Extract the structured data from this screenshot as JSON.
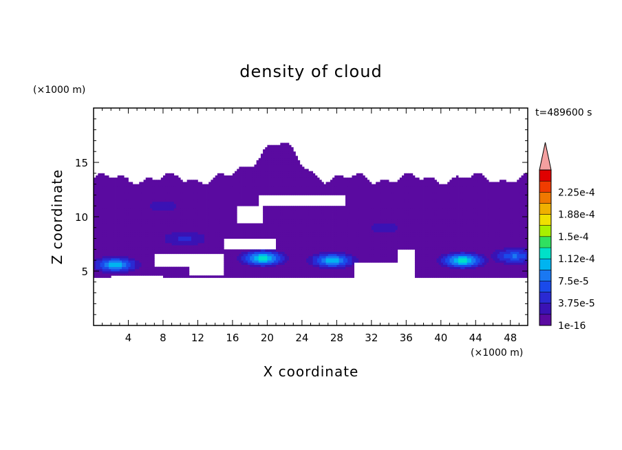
{
  "chart_data": {
    "type": "heatmap",
    "title": "density of cloud",
    "xlabel": "X coordinate",
    "ylabel": "Z coordinate",
    "x_unit": "(×1000 m)",
    "y_unit": "(×1000 m)",
    "time_label": "t=489600 s",
    "xlim": [
      0,
      50
    ],
    "ylim": [
      0,
      20
    ],
    "x_ticks": [
      4,
      8,
      12,
      16,
      20,
      24,
      28,
      32,
      36,
      40,
      44,
      48
    ],
    "y_ticks": [
      5,
      10,
      15
    ],
    "colorbar": {
      "levels": [
        1e-16,
        1.875e-05,
        3.75e-05,
        5.625e-05,
        7.5e-05,
        9.375e-05,
        0.0001125,
        0.00013125,
        0.00015,
        0.00016875,
        0.0001875,
        0.00020625,
        0.000225,
        0.00024375
      ],
      "labels": [
        "1e-16",
        "3.75e-5",
        "7.5e-5",
        "1.12e-4",
        "1.5e-4",
        "1.88e-4",
        "2.25e-4"
      ],
      "colors": [
        "#5a0aa0",
        "#3a12b4",
        "#2a2ad2",
        "#1a4aea",
        "#1a78f2",
        "#00b4f0",
        "#00e0c8",
        "#30e060",
        "#a8f000",
        "#f0e000",
        "#f0b000",
        "#f07800",
        "#f03c00",
        "#e00000"
      ],
      "extend_color": "#f4a0a0"
    },
    "field": {
      "background_level": 0,
      "upper_layer": {
        "z_bottom": 4.5,
        "z_top_range": [
          13.5,
          16.8
        ],
        "level": 0
      },
      "clear_gaps": [
        {
          "x": [
            2,
            8
          ],
          "z": [
            3.5,
            4.5
          ]
        },
        {
          "x": [
            7,
            15
          ],
          "z": [
            5.5,
            6.5
          ]
        },
        {
          "x": [
            11,
            15
          ],
          "z": [
            4.6,
            6.5
          ]
        },
        {
          "x": [
            30,
            35
          ],
          "z": [
            4.2,
            5.8
          ]
        },
        {
          "x": [
            35,
            37
          ],
          "z": [
            4.5,
            7
          ]
        },
        {
          "x": [
            15,
            21
          ],
          "z": [
            7,
            8
          ]
        },
        {
          "x": [
            19,
            29
          ],
          "z": [
            11,
            12
          ]
        },
        {
          "x": [
            16.5,
            19.5
          ],
          "z": [
            9.5,
            11
          ]
        }
      ],
      "cells": [
        {
          "x": 2.5,
          "z": 5.6,
          "peak_level": 6
        },
        {
          "x": 19.5,
          "z": 6.2,
          "peak_level": 7
        },
        {
          "x": 27.5,
          "z": 6.0,
          "peak_level": 6
        },
        {
          "x": 42.5,
          "z": 6.0,
          "peak_level": 7
        },
        {
          "x": 48.5,
          "z": 6.4,
          "peak_level": 4
        },
        {
          "x": 10.5,
          "z": 8.0,
          "peak_level": 2
        },
        {
          "x": 33.5,
          "z": 9.0,
          "peak_level": 1
        },
        {
          "x": 8.0,
          "z": 11.0,
          "peak_level": 1
        }
      ]
    }
  }
}
